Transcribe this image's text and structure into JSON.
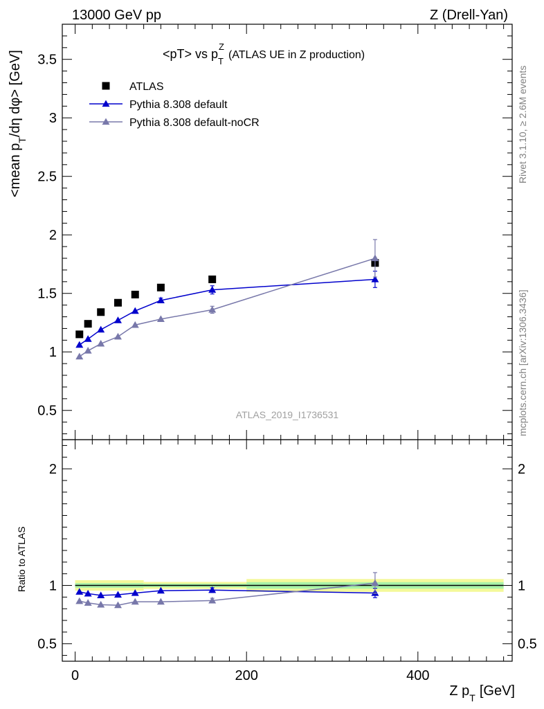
{
  "header": {
    "left": "13000 GeV pp",
    "right": "Z (Drell-Yan)"
  },
  "side_labels": {
    "rivet": "Rivet 3.1.10, ≥ 2.6M events",
    "source": "mcplots.cern.ch [arXiv:1306.3436]"
  },
  "chart_data": [
    {
      "type": "line",
      "title_main": "<pT> vs p",
      "title_sub": "T",
      "title_sup": "Z",
      "title_rest": "(ATLAS UE in Z production)",
      "watermark": "ATLAS_2019_I1736531",
      "ylabel": "<mean p",
      "ylabel_sub": "T",
      "ylabel_rest": "/dη dφ> [GeV]",
      "xlim": [
        -15,
        510
      ],
      "ylim": [
        0.25,
        3.8
      ],
      "yticks": [
        0.5,
        1,
        1.5,
        2,
        2.5,
        3,
        3.5
      ],
      "ytick_labels": [
        "0.5",
        "1",
        "1.5",
        "2",
        "2.5",
        "3",
        "3.5"
      ],
      "legend_position": "top-left",
      "series": [
        {
          "name": "ATLAS",
          "marker": "square",
          "color": "#000000",
          "points": [
            {
              "x": 5,
              "y": 1.15
            },
            {
              "x": 15,
              "y": 1.24
            },
            {
              "x": 30,
              "y": 1.34
            },
            {
              "x": 50,
              "y": 1.42
            },
            {
              "x": 70,
              "y": 1.49
            },
            {
              "x": 100,
              "y": 1.55
            },
            {
              "x": 160,
              "y": 1.62
            },
            {
              "x": 350,
              "y": 1.76
            }
          ]
        },
        {
          "name": "Pythia 8.308 default",
          "marker": "triangle",
          "color": "#0000cc",
          "points": [
            {
              "x": 5,
              "y": 1.06
            },
            {
              "x": 15,
              "y": 1.11
            },
            {
              "x": 30,
              "y": 1.19
            },
            {
              "x": 50,
              "y": 1.27
            },
            {
              "x": 70,
              "y": 1.35
            },
            {
              "x": 100,
              "y": 1.44,
              "err": 0.02
            },
            {
              "x": 160,
              "y": 1.53,
              "err": 0.035
            },
            {
              "x": 350,
              "y": 1.62,
              "err": 0.07
            }
          ]
        },
        {
          "name": "Pythia 8.308 default-noCR",
          "marker": "triangle",
          "color": "#7878aa",
          "points": [
            {
              "x": 5,
              "y": 0.96
            },
            {
              "x": 15,
              "y": 1.01
            },
            {
              "x": 30,
              "y": 1.07
            },
            {
              "x": 50,
              "y": 1.13
            },
            {
              "x": 70,
              "y": 1.23
            },
            {
              "x": 100,
              "y": 1.28
            },
            {
              "x": 160,
              "y": 1.36,
              "err": 0.03
            },
            {
              "x": 350,
              "y": 1.8,
              "err": 0.16
            }
          ]
        }
      ]
    },
    {
      "type": "line",
      "ylabel": "Ratio to ATLAS",
      "xlabel": "Z p",
      "xlabel_sub": "T",
      "xlabel_rest": "[GeV]",
      "xlim": [
        -15,
        510
      ],
      "ylim": [
        0.35,
        2.25
      ],
      "xticks": [
        0,
        200,
        400
      ],
      "xtick_labels": [
        "0",
        "200",
        "400"
      ],
      "yticks": [
        0.5,
        1,
        2
      ],
      "ytick_labels": [
        "0.5",
        "1",
        "2"
      ],
      "bands": [
        {
          "x0": 0,
          "x1": 80,
          "yellow": [
            0.955,
            1.045
          ],
          "green": [
            0.98,
            1.02
          ]
        },
        {
          "x0": 80,
          "x1": 200,
          "yellow": [
            0.97,
            1.03
          ],
          "green": [
            0.985,
            1.015
          ]
        },
        {
          "x0": 200,
          "x1": 500,
          "yellow": [
            0.945,
            1.055
          ],
          "green": [
            0.972,
            1.028
          ]
        }
      ],
      "series": [
        {
          "name": "Pythia 8.308 default",
          "color": "#0000cc",
          "points": [
            {
              "x": 5,
              "y": 0.945
            },
            {
              "x": 15,
              "y": 0.93
            },
            {
              "x": 30,
              "y": 0.915
            },
            {
              "x": 50,
              "y": 0.92
            },
            {
              "x": 70,
              "y": 0.935
            },
            {
              "x": 100,
              "y": 0.955
            },
            {
              "x": 160,
              "y": 0.96,
              "err": 0.02
            },
            {
              "x": 350,
              "y": 0.935,
              "err": 0.04
            }
          ]
        },
        {
          "name": "Pythia 8.308 default-noCR",
          "color": "#7878aa",
          "points": [
            {
              "x": 5,
              "y": 0.865
            },
            {
              "x": 15,
              "y": 0.85
            },
            {
              "x": 30,
              "y": 0.835
            },
            {
              "x": 50,
              "y": 0.83
            },
            {
              "x": 70,
              "y": 0.86
            },
            {
              "x": 100,
              "y": 0.86
            },
            {
              "x": 160,
              "y": 0.87,
              "err": 0.02
            },
            {
              "x": 350,
              "y": 1.02,
              "err": 0.09
            }
          ]
        }
      ]
    }
  ]
}
